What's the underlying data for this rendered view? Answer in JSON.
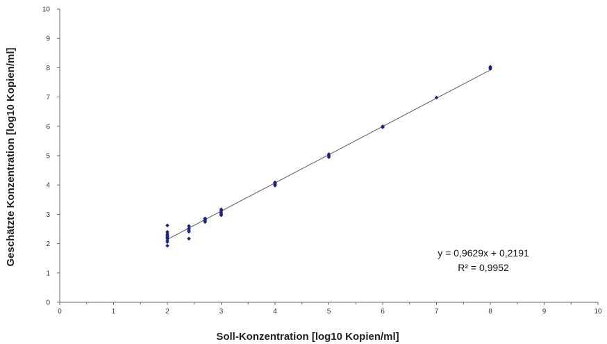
{
  "chart_data": {
    "type": "scatter",
    "title": "",
    "xlabel": "Soll-Konzentration [log10 Kopien/ml]",
    "ylabel": "Geschätzte Konzentration [log10 Kopien/ml]",
    "xlim": [
      0,
      10
    ],
    "ylim": [
      0,
      10
    ],
    "x_ticks": [
      "0",
      "1",
      "2",
      "3",
      "4",
      "5",
      "6",
      "7",
      "8",
      "9",
      "10"
    ],
    "y_ticks": [
      "0",
      "1",
      "2",
      "3",
      "4",
      "5",
      "6",
      "7",
      "8",
      "9",
      "10"
    ],
    "grid": false,
    "legend": "none",
    "series": [
      {
        "color": "#1a237e",
        "points": [
          [
            2,
            1.93
          ],
          [
            2,
            2.06
          ],
          [
            2,
            2.12
          ],
          [
            2,
            2.18
          ],
          [
            2,
            2.23
          ],
          [
            2,
            2.28
          ],
          [
            2,
            2.33
          ],
          [
            2,
            2.4
          ],
          [
            2,
            2.62
          ],
          [
            2.4,
            2.17
          ],
          [
            2.4,
            2.41
          ],
          [
            2.4,
            2.46
          ],
          [
            2.4,
            2.52
          ],
          [
            2.4,
            2.6
          ],
          [
            2.7,
            2.74
          ],
          [
            2.7,
            2.78
          ],
          [
            2.7,
            2.82
          ],
          [
            2.7,
            2.86
          ],
          [
            3,
            2.97
          ],
          [
            3,
            3.01
          ],
          [
            3,
            3.06
          ],
          [
            3,
            3.12
          ],
          [
            3,
            3.17
          ],
          [
            4,
            3.98
          ],
          [
            4,
            4.02
          ],
          [
            4,
            4.06
          ],
          [
            4,
            4.09
          ],
          [
            5,
            4.95
          ],
          [
            5,
            5.0
          ],
          [
            5,
            5.05
          ],
          [
            6,
            5.97
          ],
          [
            6,
            6.0
          ],
          [
            7,
            6.98
          ],
          [
            8,
            7.96
          ],
          [
            8,
            8.0
          ],
          [
            8,
            8.03
          ]
        ]
      }
    ],
    "trendline": {
      "slope": 0.9629,
      "intercept": 0.2191,
      "x_range": [
        2,
        8
      ],
      "color": "#666666",
      "equation": "y = 0,9629x + 0,2191",
      "r_squared": "R² = 0,9952"
    }
  }
}
